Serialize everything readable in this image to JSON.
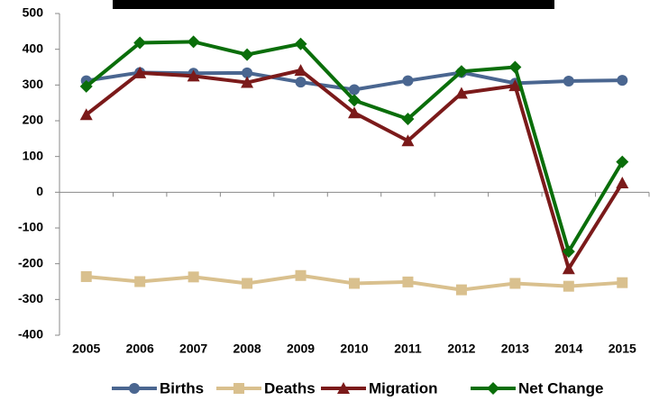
{
  "chart_data": {
    "type": "line",
    "categories": [
      "2005",
      "2006",
      "2007",
      "2008",
      "2009",
      "2010",
      "2011",
      "2012",
      "2013",
      "2014",
      "2015"
    ],
    "series": [
      {
        "name": "Births",
        "color": "#4a6690",
        "marker": "circle",
        "values": [
          312,
          335,
          333,
          334,
          308,
          287,
          312,
          335,
          305,
          311,
          313
        ]
      },
      {
        "name": "Deaths",
        "color": "#d9c08e",
        "marker": "square",
        "values": [
          -236,
          -250,
          -237,
          -255,
          -233,
          -255,
          -251,
          -273,
          -255,
          -263,
          -253
        ]
      },
      {
        "name": "Migration",
        "color": "#7b1a1a",
        "marker": "triangle",
        "values": [
          217,
          334,
          325,
          307,
          341,
          222,
          144,
          277,
          298,
          -214,
          26
        ]
      },
      {
        "name": "Net Change",
        "color": "#0a6e0a",
        "marker": "diamond",
        "values": [
          296,
          418,
          421,
          385,
          415,
          257,
          205,
          338,
          350,
          -166,
          85
        ]
      }
    ],
    "ylim": [
      -400,
      500
    ],
    "yticks": [
      -400,
      -300,
      -200,
      -100,
      0,
      100,
      200,
      300,
      400,
      500
    ]
  }
}
